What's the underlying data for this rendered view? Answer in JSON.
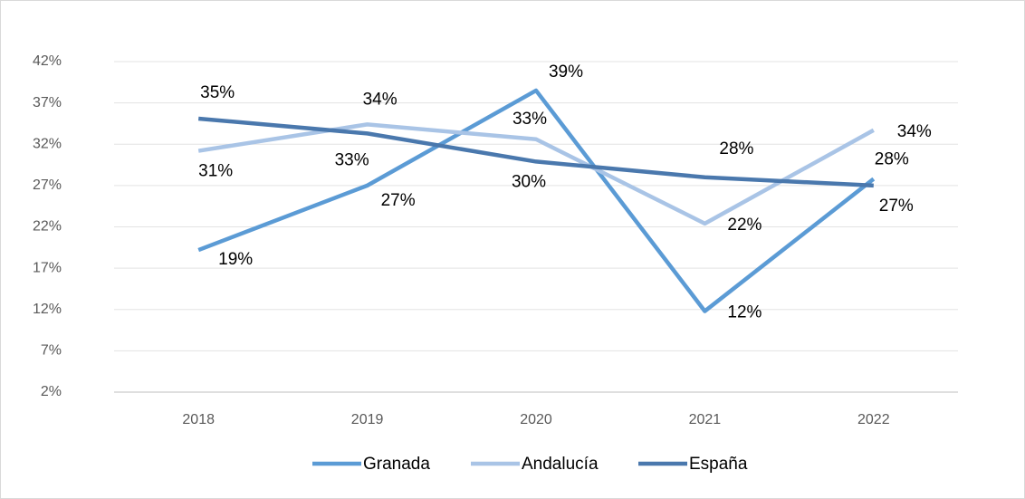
{
  "chart_data": {
    "type": "line",
    "categories": [
      "2018",
      "2019",
      "2020",
      "2021",
      "2022"
    ],
    "series": [
      {
        "name": "Granada",
        "color": "#5b9bd5",
        "values": [
          19.2,
          27.0,
          38.5,
          11.8,
          27.8
        ],
        "value_labels": [
          "19%",
          "27%",
          "39%",
          "12%",
          "28%"
        ]
      },
      {
        "name": "Andalucía",
        "color": "#a9c4e6",
        "values": [
          31.2,
          34.4,
          32.6,
          22.4,
          33.7
        ],
        "value_labels": [
          "31%",
          "34%",
          "33%",
          "22%",
          "34%"
        ]
      },
      {
        "name": "España",
        "color": "#4a78ad",
        "values": [
          35.1,
          33.3,
          29.9,
          28.0,
          27.0
        ],
        "value_labels": [
          "35%",
          "33%",
          "30%",
          "28%",
          "27%"
        ]
      }
    ],
    "ylim": [
      2,
      42
    ],
    "yticks": [
      {
        "value": 2,
        "label": "2%"
      },
      {
        "value": 7,
        "label": "7%"
      },
      {
        "value": 12,
        "label": "12%"
      },
      {
        "value": 17,
        "label": "17%"
      },
      {
        "value": 22,
        "label": "22%"
      },
      {
        "value": 27,
        "label": "27%"
      },
      {
        "value": 32,
        "label": "32%"
      },
      {
        "value": 37,
        "label": "37%"
      },
      {
        "value": 42,
        "label": "42%"
      }
    ],
    "grid": true,
    "legend": "bottom"
  }
}
